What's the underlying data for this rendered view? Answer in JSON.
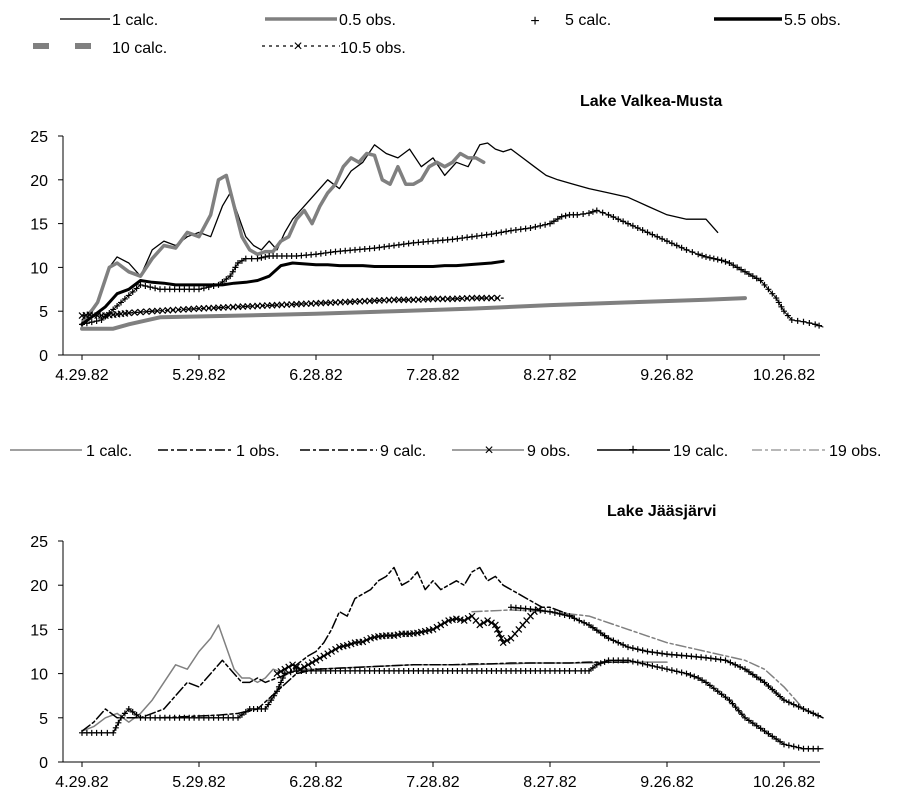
{
  "chart_data": [
    {
      "type": "line",
      "title": "Lake Valkea-Musta",
      "xlabel": "",
      "ylabel": "",
      "ylim": [
        0,
        25
      ],
      "yticks": [
        0,
        5,
        10,
        15,
        20,
        25
      ],
      "xticks": [
        "4.29.82",
        "5.29.82",
        "6.28.82",
        "7.28.82",
        "8.27.82",
        "9.26.82",
        "10.26.82"
      ],
      "xlim_days": [
        0,
        190
      ],
      "legend_position": "top",
      "series": [
        {
          "name": "1 calc.",
          "style": {
            "color": "#000000",
            "width": 1.3,
            "dash": "",
            "marker": ""
          },
          "x": [
            0,
            4,
            7,
            9,
            12,
            15,
            18,
            21,
            24,
            27,
            30,
            33,
            36,
            38,
            40,
            42,
            44,
            46,
            48,
            50,
            52,
            54,
            57,
            60,
            63,
            66,
            69,
            72,
            75,
            78,
            81,
            84,
            87,
            90,
            93,
            96,
            99,
            102,
            104,
            106,
            108,
            110,
            113,
            116,
            119,
            122,
            126,
            130,
            135,
            140,
            145,
            150,
            155,
            160,
            163
          ],
          "y": [
            4,
            6,
            10,
            11.2,
            10.5,
            9,
            12,
            13,
            12.5,
            13.5,
            14,
            13.5,
            17,
            18.5,
            16,
            13.5,
            12.5,
            12,
            13,
            12,
            14,
            15.5,
            17,
            18.5,
            20,
            19,
            21,
            22,
            24,
            23,
            22.5,
            23.5,
            21.5,
            22.5,
            20.5,
            22,
            21.5,
            24,
            24.2,
            23.5,
            23.2,
            23.5,
            22.5,
            21.5,
            20.5,
            20,
            19.5,
            19,
            18.5,
            18,
            17,
            16,
            15.5,
            15.5,
            14
          ]
        },
        {
          "name": "0.5 obs.",
          "style": {
            "color": "#808080",
            "width": 3.5,
            "dash": "",
            "marker": ""
          },
          "x": [
            0,
            4,
            7,
            9,
            12,
            15,
            18,
            21,
            24,
            27,
            30,
            33,
            35,
            37,
            39,
            41,
            43,
            45,
            47,
            49,
            51,
            53,
            55,
            57,
            59,
            61,
            63,
            65,
            67,
            69,
            71,
            73,
            75,
            77,
            79,
            81,
            83,
            85,
            87,
            89,
            91,
            93,
            95,
            97,
            99,
            101,
            103
          ],
          "y": [
            3.5,
            6,
            10,
            10.5,
            9.5,
            9,
            11,
            12.5,
            12.2,
            14,
            13.5,
            16,
            20,
            20.5,
            17,
            13.5,
            12,
            11.5,
            11.8,
            11.8,
            13,
            13.5,
            15.5,
            16.5,
            15,
            17,
            18.5,
            19.5,
            21.5,
            22.5,
            22,
            23,
            22.8,
            20,
            19.5,
            21.5,
            19.5,
            19.5,
            20,
            21.5,
            22,
            21.5,
            22,
            23,
            22.5,
            22.5,
            22
          ]
        },
        {
          "name": "5 calc.",
          "style": {
            "color": "#000000",
            "width": 1,
            "dash": "",
            "marker": "plus"
          },
          "x": [
            0,
            5,
            10,
            15,
            20,
            25,
            30,
            35,
            38,
            40,
            42,
            45,
            47,
            48,
            50,
            55,
            60,
            65,
            70,
            75,
            80,
            85,
            90,
            95,
            100,
            105,
            110,
            115,
            120,
            123,
            125,
            127,
            130,
            132,
            135,
            140,
            145,
            150,
            155,
            158,
            160,
            162,
            164,
            166,
            168,
            170,
            172,
            174,
            176,
            178,
            180,
            182,
            185,
            188,
            190
          ],
          "y": [
            3.5,
            4,
            6,
            8,
            7.5,
            7.5,
            7.5,
            8,
            9,
            10.5,
            11,
            11,
            11.2,
            11.3,
            11.3,
            11.3,
            11.5,
            11.8,
            12,
            12.2,
            12.5,
            12.8,
            13,
            13.2,
            13.5,
            13.8,
            14.2,
            14.5,
            15,
            15.8,
            16,
            16,
            16.2,
            16.5,
            16,
            15,
            14,
            13,
            12,
            11.5,
            11.2,
            11,
            10.8,
            10.5,
            10,
            9.5,
            9,
            8.5,
            7.5,
            6.5,
            5,
            4,
            3.8,
            3.5,
            3.2
          ]
        },
        {
          "name": "5.5 obs.",
          "style": {
            "color": "#000000",
            "width": 3,
            "dash": "",
            "marker": ""
          },
          "x": [
            0,
            3,
            6,
            9,
            12,
            15,
            18,
            21,
            24,
            27,
            30,
            33,
            36,
            39,
            42,
            45,
            48,
            51,
            54,
            57,
            60,
            63,
            66,
            69,
            72,
            75,
            78,
            81,
            84,
            87,
            90,
            93,
            96,
            99,
            102,
            105,
            108
          ],
          "y": [
            3.5,
            4.5,
            5.5,
            7,
            7.5,
            8.5,
            8.3,
            8.2,
            8,
            8,
            8,
            8,
            8,
            8.2,
            8.3,
            8.5,
            9,
            10.2,
            10.5,
            10.4,
            10.3,
            10.3,
            10.2,
            10.2,
            10.2,
            10.1,
            10.1,
            10.1,
            10.1,
            10.1,
            10.1,
            10.2,
            10.2,
            10.3,
            10.4,
            10.5,
            10.7
          ]
        },
        {
          "name": "10 calc.",
          "style": {
            "color": "#808080",
            "width": 4,
            "dash": "",
            "marker": ""
          },
          "x": [
            0,
            8,
            12,
            20,
            40,
            60,
            80,
            100,
            120,
            140,
            160,
            170
          ],
          "y": [
            3,
            3,
            3.5,
            4.3,
            4.5,
            4.7,
            5,
            5.3,
            5.7,
            6,
            6.3,
            6.5
          ]
        },
        {
          "name": "10.5 obs.",
          "style": {
            "color": "#000000",
            "width": 1.3,
            "dash": "3 3",
            "marker": "x"
          },
          "x": [
            0,
            2,
            4,
            6,
            8,
            10,
            12,
            15,
            18,
            22,
            26,
            30,
            35,
            40,
            45,
            50,
            55,
            60,
            65,
            70,
            75,
            80,
            85,
            90,
            95,
            100,
            105,
            108
          ],
          "y": [
            4.5,
            4.6,
            4.5,
            4.5,
            4.6,
            4.7,
            4.8,
            4.9,
            5,
            5.1,
            5.2,
            5.3,
            5.4,
            5.5,
            5.6,
            5.7,
            5.8,
            5.9,
            6,
            6.1,
            6.2,
            6.3,
            6.3,
            6.4,
            6.4,
            6.5,
            6.5,
            6.5
          ]
        }
      ]
    },
    {
      "type": "line",
      "title": "Lake Jääsjärvi",
      "xlabel": "",
      "ylabel": "",
      "ylim": [
        0,
        25
      ],
      "yticks": [
        0,
        5,
        10,
        15,
        20,
        25
      ],
      "xticks": [
        "4.29.82",
        "5.29.82",
        "6.28.82",
        "7.28.82",
        "8.27.82",
        "9.26.82",
        "10.26.82"
      ],
      "xlim_days": [
        0,
        190
      ],
      "legend_position": "top",
      "series": [
        {
          "name": "1 calc.",
          "style": {
            "color": "#808080",
            "width": 1.5,
            "dash": "",
            "marker": ""
          },
          "x": [
            0,
            3,
            6,
            9,
            12,
            15,
            18,
            21,
            24,
            27,
            30,
            33,
            35,
            37,
            39,
            41,
            43,
            45,
            47,
            49,
            51,
            53,
            55,
            60,
            65,
            70,
            75,
            80,
            85,
            90,
            95,
            100,
            105,
            110,
            115,
            120,
            125,
            130,
            135,
            140,
            145,
            148,
            150
          ],
          "y": [
            3.5,
            4,
            5,
            5.5,
            4.5,
            5.5,
            7,
            9,
            11,
            10.5,
            12.5,
            14,
            15.5,
            13,
            10.5,
            9.5,
            9.5,
            9,
            9.5,
            10.5,
            10.2,
            10,
            10.5,
            10.5,
            10.6,
            10.7,
            10.8,
            10.9,
            11,
            11,
            11,
            11,
            11.1,
            11.1,
            11.2,
            11.2,
            11.2,
            11.2,
            11.3,
            11.3,
            11.3,
            11.3,
            11.3
          ]
        },
        {
          "name": "1 obs.",
          "style": {
            "color": "#000000",
            "width": 1.5,
            "dash": "10 3 3 3",
            "marker": ""
          },
          "x": [
            0,
            3,
            6,
            9,
            12,
            15,
            18,
            21,
            24,
            27,
            30,
            33,
            36,
            39,
            41,
            43,
            45,
            47,
            50,
            53,
            55,
            58,
            60,
            62,
            64,
            66,
            68,
            70,
            72,
            74,
            76,
            78,
            80,
            82,
            84,
            86,
            88,
            90,
            92,
            94,
            96,
            98,
            100,
            102,
            104,
            106,
            108,
            110,
            112,
            114,
            116,
            118,
            120,
            123,
            126
          ],
          "y": [
            3.5,
            4.5,
            6,
            5,
            5,
            5,
            5.5,
            6,
            7.5,
            9,
            8.5,
            10,
            11.5,
            10,
            9,
            9,
            9.5,
            9,
            9.5,
            10,
            11,
            12,
            12.5,
            13.5,
            15,
            17,
            16.5,
            18.5,
            19,
            19.5,
            20.5,
            21,
            22,
            20,
            20.5,
            21.5,
            19.5,
            20.5,
            19.5,
            20,
            20.5,
            20,
            21.5,
            22,
            20.5,
            21,
            20,
            19.5,
            19,
            18.5,
            18,
            17.5,
            17.5,
            17,
            16.5
          ]
        },
        {
          "name": "9 calc.",
          "style": {
            "color": "#000000",
            "width": 1.5,
            "dash": "10 3 3 3",
            "marker": ""
          },
          "x": [
            20,
            25,
            30,
            35,
            40,
            45,
            50,
            55,
            60,
            65,
            70,
            75,
            80,
            85,
            90,
            95,
            100,
            105,
            110,
            115,
            120,
            125,
            130,
            135,
            140
          ],
          "y": [
            5,
            5.1,
            5.2,
            5.3,
            5.5,
            6,
            8,
            10,
            10.5,
            10.6,
            10.7,
            10.8,
            10.9,
            11,
            11,
            11,
            11.1,
            11.1,
            11.2,
            11.2,
            11.2,
            11.2,
            11.3,
            11.3,
            11.3
          ]
        },
        {
          "name": "9 obs.",
          "style": {
            "color": "#000000",
            "width": 1.3,
            "dash": "",
            "marker": "x"
          },
          "x": [
            50,
            52,
            54,
            56,
            58,
            60,
            62,
            64,
            66,
            68,
            70,
            72,
            74,
            76,
            78,
            80,
            82,
            84,
            86,
            88,
            90,
            92,
            94,
            96,
            98,
            100,
            102,
            104,
            106,
            108,
            110,
            112,
            114,
            116,
            118
          ],
          "y": [
            10,
            10.5,
            11,
            10.5,
            11,
            11.5,
            12,
            12.5,
            13,
            13.2,
            13.5,
            13.6,
            14,
            14.2,
            14.3,
            14.3,
            14.5,
            14.5,
            14.6,
            14.8,
            15,
            15.5,
            16,
            16.2,
            16,
            16.5,
            15.5,
            16,
            15.5,
            13.5,
            14,
            15,
            16,
            17,
            17.5
          ]
        },
        {
          "name": "19 calc.",
          "style": {
            "color": "#000000",
            "width": 1.2,
            "dash": "",
            "marker": "plus"
          },
          "x": [
            0,
            5,
            8,
            10,
            12,
            15,
            20,
            25,
            30,
            35,
            40,
            43,
            45,
            47,
            50,
            52,
            55,
            60,
            65,
            70,
            75,
            80,
            85,
            90,
            95,
            100,
            105,
            110,
            115,
            120,
            125,
            128,
            130,
            132,
            135,
            140,
            145,
            150,
            155,
            158,
            160,
            163,
            166,
            170,
            175,
            180,
            185,
            190
          ],
          "y": [
            3.3,
            3.3,
            3.3,
            5,
            6,
            5,
            5,
            5,
            5,
            5,
            5,
            6,
            6,
            6,
            8,
            10,
            10.3,
            10.3,
            10.3,
            10.3,
            10.3,
            10.3,
            10.3,
            10.3,
            10.3,
            10.3,
            10.3,
            10.3,
            10.3,
            10.3,
            10.3,
            10.3,
            10.3,
            11,
            11.5,
            11.5,
            11,
            10.5,
            10,
            9.5,
            9,
            8,
            7,
            5,
            3.5,
            2,
            1.5,
            1.5
          ]
        },
        {
          "name": "19 obs.",
          "style": {
            "color": "#808080",
            "width": 1.5,
            "dash": "10 3 3 3",
            "marker": ""
          },
          "x": [
            100,
            110,
            120,
            130,
            140,
            150,
            160,
            165,
            170,
            175,
            180,
            185,
            190
          ],
          "y": [
            17,
            17.2,
            17,
            16.5,
            15,
            13.5,
            12.5,
            12,
            11.5,
            10.5,
            8.5,
            6,
            5
          ]
        },
        {
          "name": "",
          "style": {
            "color": "#000000",
            "width": 1.5,
            "dash": "",
            "marker": "plus"
          },
          "x": [
            110,
            115,
            120,
            125,
            130,
            135,
            140,
            145,
            150,
            155,
            160,
            165,
            170,
            175,
            180,
            185,
            190
          ],
          "y": [
            17.5,
            17.3,
            17,
            16.5,
            15.5,
            14,
            13,
            12.5,
            12.2,
            12,
            11.8,
            11.5,
            10.5,
            9,
            7,
            6,
            5
          ]
        }
      ]
    }
  ]
}
